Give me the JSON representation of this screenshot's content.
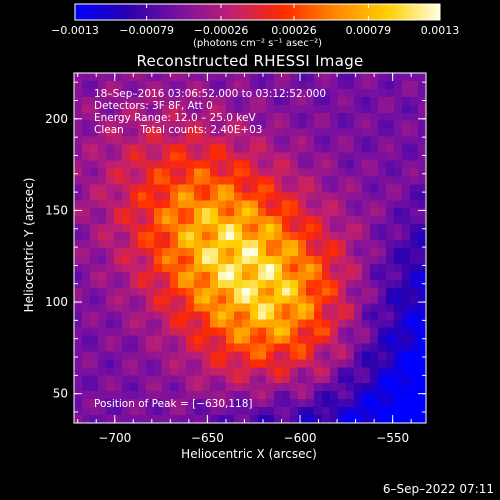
{
  "chart_data": {
    "type": "heatmap",
    "title": "Reconstructed RHESSI Image",
    "xlabel": "Heliocentric X (arcsec)",
    "ylabel": "Heliocentric Y (arcsec)",
    "xlim": [
      -722,
      -532
    ],
    "ylim": [
      34,
      225
    ],
    "xticks": [
      -700,
      -650,
      -600,
      -550
    ],
    "xtick_labels": [
      "−700",
      "−650",
      "−600",
      "−550"
    ],
    "yticks": [
      50,
      100,
      150,
      200
    ],
    "ytick_labels": [
      "50",
      "100",
      "150",
      "200"
    ],
    "colorbar": {
      "range": [
        -0.0013,
        0.0013
      ],
      "ticks": [
        -0.0013,
        -0.00079,
        -0.00026,
        0.00026,
        0.00079,
        0.0013
      ],
      "tick_labels": [
        "−0.0013",
        "−0.00079",
        "−0.00026",
        "0.00026",
        "0.00079",
        "0.0013"
      ],
      "unit": "(photons cm⁻² s⁻¹ asec⁻²)",
      "colors": [
        "#0000ff",
        "#2a00b0",
        "#7a10a0",
        "#c02070",
        "#ff2a00",
        "#ff8800",
        "#ffd000",
        "#ffffe0"
      ]
    },
    "peak": [
      -630,
      118
    ],
    "annotations": {
      "time": "18–Sep–2016 03:06:52.000 to 03:12:52.000",
      "detectors": "Detectors: 3F 8F, Att 0",
      "energy": "Energy Range: 12.0 – 25.0 keV",
      "clean": "Clean     Total counts: 2.40E+03",
      "peak_text": "Position of Peak = [−630,118]"
    }
  },
  "footer": {
    "timestamp": "6–Sep–2022 07:11"
  }
}
